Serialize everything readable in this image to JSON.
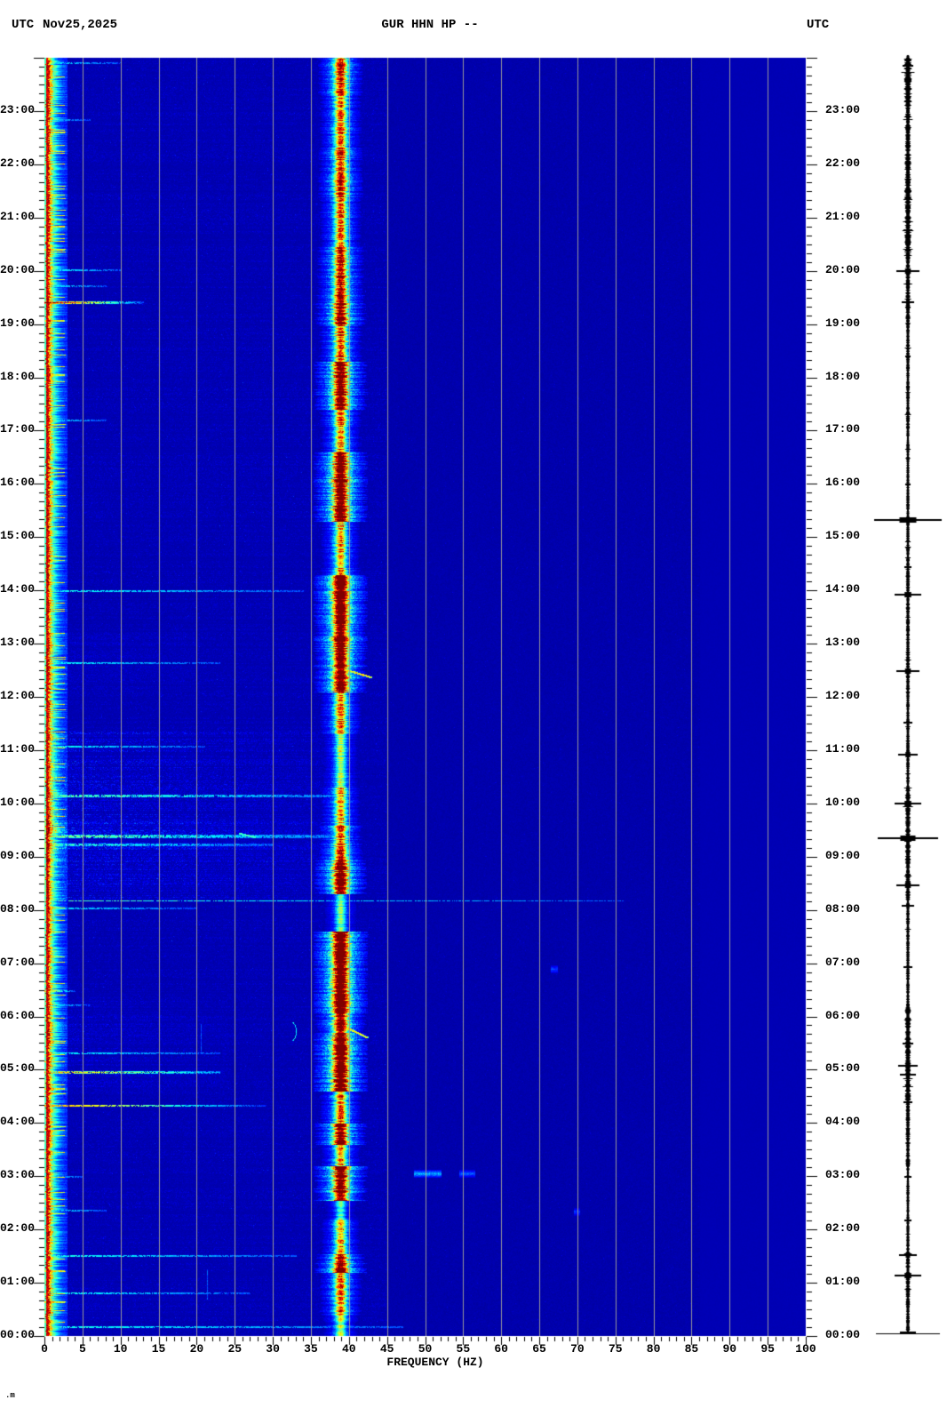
{
  "header": {
    "utc_left": "UTC",
    "date": "Nov25,2025",
    "station": "GUR HHN HP --",
    "utc_right": "UTC"
  },
  "x_axis": {
    "title": "FREQUENCY (HZ)",
    "min_hz": 0,
    "max_hz": 100,
    "major_step_hz": 5,
    "minor_step_hz": 1,
    "tick_labels": [
      "0",
      "5",
      "10",
      "15",
      "20",
      "25",
      "30",
      "35",
      "40",
      "45",
      "50",
      "55",
      "60",
      "65",
      "70",
      "75",
      "80",
      "85",
      "90",
      "95",
      "100"
    ]
  },
  "y_axis": {
    "unit": "UTC",
    "min_hour": 0,
    "max_hour": 24,
    "minor_step_min": 10,
    "hour_labels": [
      "23:00",
      "22:00",
      "21:00",
      "20:00",
      "19:00",
      "18:00",
      "17:00",
      "16:00",
      "15:00",
      "14:00",
      "13:00",
      "12:00",
      "11:00",
      "10:00",
      "09:00",
      "08:00",
      "07:00",
      "06:00",
      "05:00",
      "04:00",
      "03:00",
      "02:00",
      "01:00",
      "00:00"
    ]
  },
  "corner_mark": ".m",
  "palette": {
    "page": "#FFFFFF",
    "background": "#0000A4",
    "grid": "#97979B",
    "axis": "#000000",
    "text": "#000000",
    "band_core": "#FF0000",
    "band_mid": "#FFFF00",
    "band_halo": "#00CCFF",
    "microseism_core": "#D40000",
    "event_cyan": "#00CCFF",
    "trace": "#000000"
  },
  "chart_data": {
    "type": "heatmap",
    "subtype": "24h seismic spectrogram with helicorder trace",
    "station_channel": "GUR HHN HP --",
    "date": "Nov25,2025",
    "time_axis": {
      "min_hour": 0,
      "max_hour": 24,
      "direction": "bottom-to-top",
      "gridlines": false
    },
    "freq_axis": {
      "min_hz": 0,
      "max_hz": 100,
      "gridline_every_hz": 5
    },
    "persistent_features": [
      {
        "name": "microseism-band",
        "f0": 0,
        "f1": 2.5,
        "strength": 1.0,
        "look": "red core with yellow/cyan fringe, full 24h"
      },
      {
        "name": "monochromatic-line",
        "f_center_hz": 38.9,
        "look": "red/yellow core, cyan halo, strength varies by hour, full 24h"
      },
      {
        "name": "smooth-zone",
        "f0": 86,
        "f1": 100,
        "look": "uniform deep blue, almost no texture"
      }
    ],
    "line_strength_segments": [
      [
        0,
        0.4,
        0.4
      ],
      [
        0.4,
        1.2,
        0.55
      ],
      [
        1.2,
        1.55,
        0.8
      ],
      [
        1.55,
        2.2,
        0.5
      ],
      [
        2.2,
        2.55,
        0.3
      ],
      [
        2.55,
        3.2,
        0.85
      ],
      [
        3.2,
        3.6,
        0.5
      ],
      [
        3.6,
        4.0,
        0.8
      ],
      [
        4.0,
        4.6,
        0.55
      ],
      [
        4.6,
        5.65,
        0.92
      ],
      [
        5.65,
        6.05,
        0.8
      ],
      [
        6.05,
        7.6,
        0.97
      ],
      [
        7.6,
        8.3,
        0.32
      ],
      [
        8.3,
        9.0,
        0.8
      ],
      [
        9.0,
        9.6,
        0.6
      ],
      [
        9.6,
        10.3,
        0.5
      ],
      [
        10.3,
        11.3,
        0.38
      ],
      [
        11.3,
        12.1,
        0.55
      ],
      [
        12.1,
        12.85,
        0.85
      ],
      [
        12.85,
        14.3,
        0.92
      ],
      [
        14.3,
        15.3,
        0.5
      ],
      [
        15.3,
        16.6,
        0.88
      ],
      [
        16.6,
        17.4,
        0.55
      ],
      [
        17.4,
        18.3,
        0.82
      ],
      [
        18.3,
        19.0,
        0.6
      ],
      [
        19.0,
        19.55,
        0.78
      ],
      [
        19.55,
        20.45,
        0.68
      ],
      [
        20.45,
        21.3,
        0.55
      ],
      [
        21.3,
        22.3,
        0.62
      ],
      [
        22.3,
        23.3,
        0.55
      ],
      [
        23.3,
        24,
        0.62
      ]
    ],
    "events": [
      {
        "t": 19.42,
        "f0": 0,
        "f1": 13,
        "s": 1.0,
        "k": "hot",
        "th": 3
      },
      {
        "t": 6.5,
        "f0": 0,
        "f1": 4,
        "s": 0.85,
        "k": "hot",
        "th": 2
      },
      {
        "t": 4.34,
        "f0": 0,
        "f1": 29,
        "s": 0.9,
        "k": "hot",
        "th": 2
      },
      {
        "t": 4.97,
        "f0": 0,
        "f1": 23,
        "s": 0.8,
        "k": "warm",
        "th": 3
      },
      {
        "t": 20.03,
        "f0": 0,
        "f1": 10,
        "s": 0.5,
        "k": "cyan",
        "th": 2
      },
      {
        "t": 19.73,
        "f0": 0,
        "f1": 8,
        "s": 0.45,
        "k": "cyan",
        "th": 2
      },
      {
        "t": 17.2,
        "f0": 0,
        "f1": 8,
        "s": 0.4,
        "k": "cyan",
        "th": 2
      },
      {
        "t": 14.0,
        "f0": 0,
        "f1": 34,
        "s": 0.5,
        "k": "cyan",
        "th": 2
      },
      {
        "t": 12.65,
        "f0": 0,
        "f1": 23,
        "s": 0.45,
        "k": "cyan",
        "th": 2
      },
      {
        "t": 11.08,
        "f0": 0,
        "f1": 21,
        "s": 0.5,
        "k": "cyan",
        "th": 2
      },
      {
        "t": 10.17,
        "f0": 0,
        "f1": 40,
        "s": 0.55,
        "k": "cyan",
        "th": 3
      },
      {
        "t": 9.42,
        "f0": 0,
        "f1": 40,
        "s": 0.5,
        "k": "cyan",
        "th": 4
      },
      {
        "t": 9.25,
        "f0": 0,
        "f1": 30,
        "s": 0.4,
        "k": "cyan",
        "th": 3
      },
      {
        "t": 8.17,
        "f0": 0,
        "f1": 76,
        "s": 0.33,
        "k": "cyan",
        "th": 1
      },
      {
        "t": 8.05,
        "f0": 0,
        "f1": 20,
        "s": 0.35,
        "k": "cyan",
        "th": 2
      },
      {
        "t": 6.22,
        "f0": 0,
        "f1": 6,
        "s": 0.4,
        "k": "cyan",
        "th": 2
      },
      {
        "t": 5.33,
        "f0": 0,
        "f1": 23,
        "s": 0.45,
        "k": "cyan",
        "th": 2
      },
      {
        "t": 3.0,
        "f0": 0,
        "f1": 5,
        "s": 0.35,
        "k": "cyan",
        "th": 2
      },
      {
        "t": 2.37,
        "f0": 0,
        "f1": 8,
        "s": 0.35,
        "k": "cyan",
        "th": 2
      },
      {
        "t": 1.52,
        "f0": 0,
        "f1": 33,
        "s": 0.55,
        "k": "cyan",
        "th": 2
      },
      {
        "t": 0.82,
        "f0": 0,
        "f1": 27,
        "s": 0.5,
        "k": "cyan",
        "th": 2
      },
      {
        "t": 0.18,
        "f0": 0,
        "f1": 47,
        "s": 0.55,
        "k": "cyan",
        "th": 2
      },
      {
        "t": 23.92,
        "f0": 0,
        "f1": 10,
        "s": 0.4,
        "k": "cyan",
        "th": 2
      },
      {
        "t": 22.85,
        "f0": 0,
        "f1": 6,
        "s": 0.3,
        "k": "cyan",
        "th": 2
      }
    ],
    "diffuse_regions": [
      [
        8.2,
        11.35,
        0,
        40,
        0.32
      ],
      [
        9.1,
        9.75,
        0,
        38,
        0.22
      ],
      [
        4.55,
        6.3,
        0,
        24,
        0.18
      ],
      [
        12.15,
        13.2,
        0,
        20,
        0.12
      ],
      [
        0.3,
        0.9,
        0,
        10,
        0.1
      ]
    ],
    "spot_features": [
      {
        "kind": "blob",
        "t": 3.06,
        "f0": 48.5,
        "f1": 52,
        "s": 0.55
      },
      {
        "kind": "blob",
        "t": 3.06,
        "f0": 54.5,
        "f1": 56.5,
        "s": 0.35
      },
      {
        "kind": "blob",
        "t": 6.9,
        "f0": 66.5,
        "f1": 67.3,
        "s": 0.3
      },
      {
        "kind": "blob",
        "t": 2.33,
        "f0": 69.5,
        "f1": 70.3,
        "s": 0.28
      },
      {
        "kind": "diag",
        "t0": 5.85,
        "f0": 38.9,
        "t1": 5.62,
        "f1": 42.3,
        "s": 0.75
      },
      {
        "kind": "diag",
        "t0": 12.55,
        "f0": 38.9,
        "t1": 12.38,
        "f1": 42.8,
        "s": 0.8
      },
      {
        "kind": "diag",
        "t0": 9.45,
        "f0": 25.5,
        "t1": 9.38,
        "f1": 27.5,
        "s": 0.45
      },
      {
        "kind": "arc",
        "t": 5.72,
        "f": 32.3,
        "s": 0.6
      },
      {
        "kind": "vline",
        "f": 21.4,
        "t0": 0.7,
        "t1": 1.25,
        "s": 0.3
      },
      {
        "kind": "vline",
        "f": 20.5,
        "t0": 5.3,
        "t1": 5.85,
        "s": 0.25
      }
    ]
  },
  "seismogram": {
    "events": [
      [
        15.33,
        38
      ],
      [
        9.35,
        34
      ],
      [
        0.05,
        36
      ],
      [
        13.92,
        15
      ],
      [
        12.5,
        13
      ],
      [
        10.92,
        11
      ],
      [
        10.0,
        15
      ],
      [
        8.47,
        13
      ],
      [
        8.08,
        7
      ],
      [
        20.0,
        13
      ],
      [
        19.42,
        7
      ],
      [
        5.08,
        11
      ],
      [
        4.92,
        9
      ],
      [
        1.52,
        10
      ],
      [
        1.15,
        15
      ],
      [
        23.85,
        6
      ],
      [
        21.5,
        4
      ],
      [
        3.0,
        4
      ],
      [
        6.93,
        5
      ],
      [
        2.17,
        4
      ],
      [
        16.0,
        3
      ],
      [
        14.45,
        4
      ],
      [
        11.52,
        5
      ],
      [
        18.4,
        3
      ],
      [
        4.4,
        5
      ],
      [
        5.5,
        6
      ]
    ],
    "activity": [
      [
        23.1,
        24,
        2.8
      ],
      [
        22.2,
        23.1,
        1.9
      ],
      [
        20.3,
        22.2,
        2.3
      ],
      [
        19.0,
        20.3,
        1.6
      ],
      [
        17.0,
        19.0,
        1.2
      ],
      [
        15.5,
        17.0,
        1.0
      ],
      [
        14.3,
        15.5,
        1.1
      ],
      [
        12.0,
        14.3,
        1.3
      ],
      [
        10.3,
        12.0,
        1.1
      ],
      [
        8.2,
        10.3,
        1.9
      ],
      [
        6.2,
        8.2,
        1.1
      ],
      [
        4.4,
        6.2,
        2.1
      ],
      [
        3.2,
        4.4,
        1.5
      ],
      [
        1.6,
        3.2,
        1.0
      ],
      [
        0,
        1.6,
        1.4
      ]
    ]
  }
}
